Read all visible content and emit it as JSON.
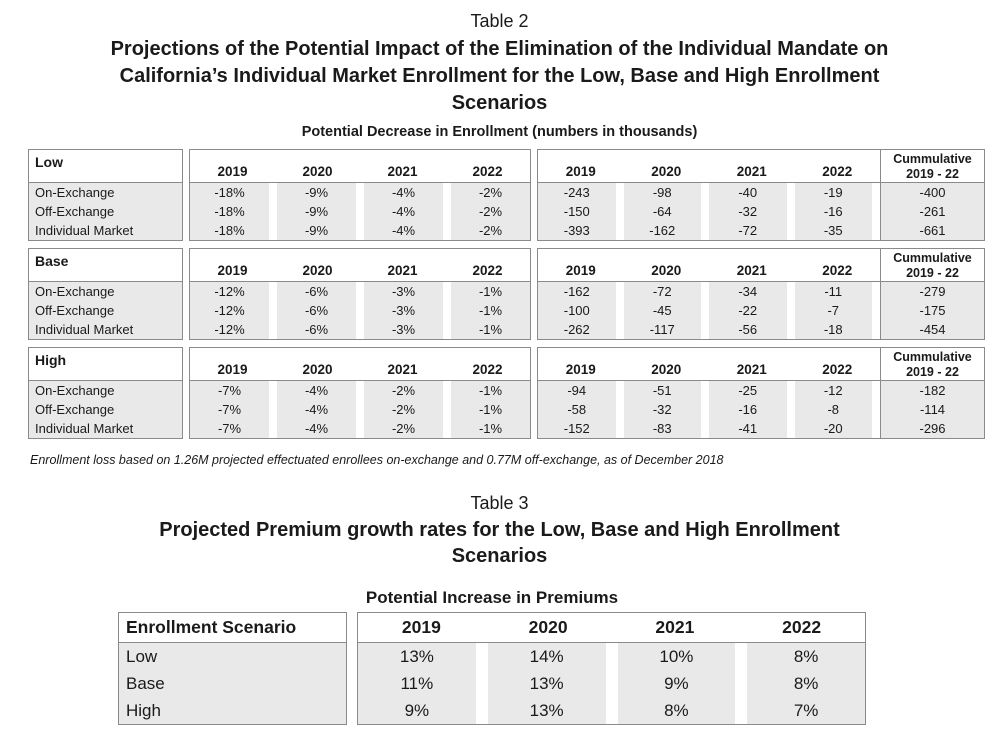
{
  "header": {
    "table2_label": "Table 2",
    "table2_title": "Projections of the Potential Impact of the Elimination of the Individual Mandate on\nCalifornia’s Individual Market Enrollment for the Low, Base and High Enrollment\nScenarios",
    "table2_subtitle": "Potential Decrease in Enrollment (numbers in thousands)"
  },
  "table2": {
    "years": [
      "2019",
      "2020",
      "2021",
      "2022"
    ],
    "cumulative_header": "Cummulative\n2019 - 22",
    "scenarios": [
      {
        "name": "Low",
        "rows": [
          {
            "label": "On-Exchange",
            "pct": [
              "-18%",
              "-9%",
              "-4%",
              "-2%"
            ],
            "nums": [
              "-243",
              "-98",
              "-40",
              "-19"
            ],
            "cumulative": "-400"
          },
          {
            "label": "Off-Exchange",
            "pct": [
              "-18%",
              "-9%",
              "-4%",
              "-2%"
            ],
            "nums": [
              "-150",
              "-64",
              "-32",
              "-16"
            ],
            "cumulative": "-261"
          },
          {
            "label": "Individual Market",
            "pct": [
              "-18%",
              "-9%",
              "-4%",
              "-2%"
            ],
            "nums": [
              "-393",
              "-162",
              "-72",
              "-35"
            ],
            "cumulative": "-661"
          }
        ]
      },
      {
        "name": "Base",
        "rows": [
          {
            "label": "On-Exchange",
            "pct": [
              "-12%",
              "-6%",
              "-3%",
              "-1%"
            ],
            "nums": [
              "-162",
              "-72",
              "-34",
              "-11"
            ],
            "cumulative": "-279"
          },
          {
            "label": "Off-Exchange",
            "pct": [
              "-12%",
              "-6%",
              "-3%",
              "-1%"
            ],
            "nums": [
              "-100",
              "-45",
              "-22",
              "-7"
            ],
            "cumulative": "-175"
          },
          {
            "label": "Individual Market",
            "pct": [
              "-12%",
              "-6%",
              "-3%",
              "-1%"
            ],
            "nums": [
              "-262",
              "-117",
              "-56",
              "-18"
            ],
            "cumulative": "-454"
          }
        ]
      },
      {
        "name": "High",
        "rows": [
          {
            "label": "On-Exchange",
            "pct": [
              "-7%",
              "-4%",
              "-2%",
              "-1%"
            ],
            "nums": [
              "-94",
              "-51",
              "-25",
              "-12"
            ],
            "cumulative": "-182"
          },
          {
            "label": "Off-Exchange",
            "pct": [
              "-7%",
              "-4%",
              "-2%",
              "-1%"
            ],
            "nums": [
              "-58",
              "-32",
              "-16",
              "-8"
            ],
            "cumulative": "-114"
          },
          {
            "label": "Individual Market",
            "pct": [
              "-7%",
              "-4%",
              "-2%",
              "-1%"
            ],
            "nums": [
              "-152",
              "-83",
              "-41",
              "-20"
            ],
            "cumulative": "-296"
          }
        ]
      }
    ],
    "footnote": "Enrollment loss based on 1.26M projected effectuated enrollees on-exchange and 0.77M off-exchange, as of December 2018"
  },
  "table3_header": {
    "label": "Table 3",
    "title": "Projected Premium growth rates for the Low, Base and High Enrollment\nScenarios",
    "subtitle": "Potential Increase in Premiums"
  },
  "table3": {
    "scenario_column_header": "Enrollment Scenario",
    "years": [
      "2019",
      "2020",
      "2021",
      "2022"
    ],
    "rows": [
      {
        "label": "Low",
        "values": [
          "13%",
          "14%",
          "10%",
          "8%"
        ]
      },
      {
        "label": "Base",
        "values": [
          "11%",
          "13%",
          "9%",
          "8%"
        ]
      },
      {
        "label": "High",
        "values": [
          "9%",
          "13%",
          "8%",
          "7%"
        ]
      }
    ]
  },
  "colors": {
    "row_shade": "#e9e9e9",
    "border": "#8a8a8a",
    "text": "#1a1a1a"
  }
}
